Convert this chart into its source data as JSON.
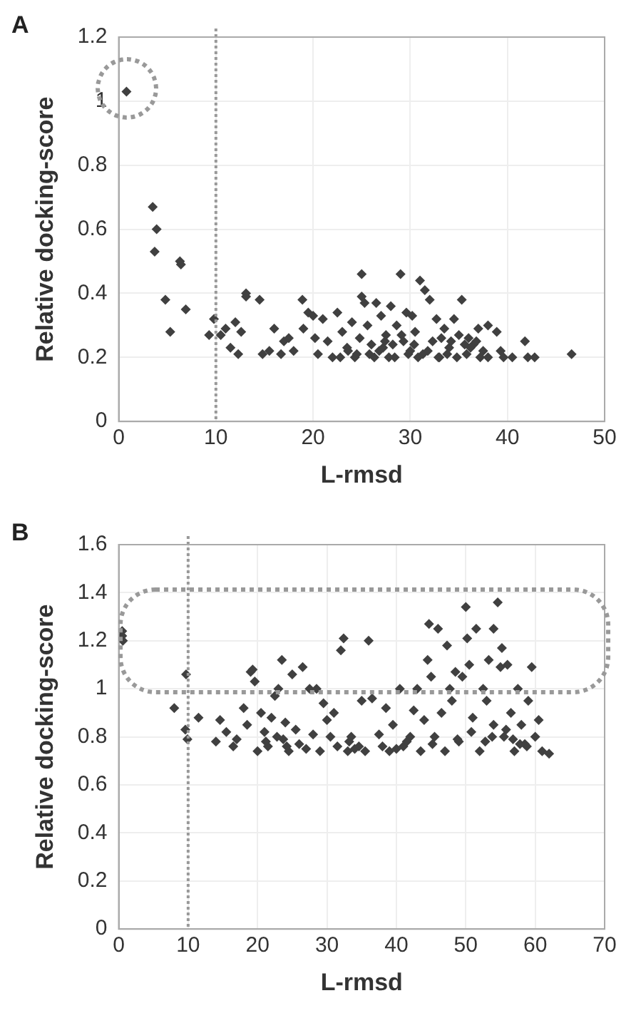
{
  "chart_data": [
    {
      "type": "scatter",
      "annotations": [
        "A"
      ],
      "xlabel": "L-rmsd",
      "ylabel": "Relative docking-score",
      "color": "#404040",
      "marker": "diamond",
      "grid": true,
      "xlim": [
        0,
        50
      ],
      "xticks": [
        0,
        10,
        20,
        30,
        40,
        50
      ],
      "ylim": [
        0,
        1.2
      ],
      "yticks": [
        0,
        0.2,
        0.4,
        0.6,
        0.8,
        1,
        1.2
      ],
      "ref_lines": [
        {
          "axis": "x",
          "value": 10,
          "color": "#999999",
          "line_style": "dotted"
        }
      ],
      "x": [
        0.8,
        3.5,
        3.9,
        3.7,
        6.3,
        6.4,
        4.8,
        5.3,
        6.9,
        9.3,
        9.8,
        10.5,
        11,
        11.5,
        12,
        12.3,
        12.6,
        13.1,
        13.1,
        14.5,
        14.8,
        15.5,
        16,
        16.7,
        17,
        17.5,
        18,
        18.9,
        19,
        19.5,
        20,
        20.2,
        20.5,
        21,
        21.5,
        22,
        22.5,
        23,
        23.5,
        24,
        24.5,
        25,
        25,
        25.3,
        25.6,
        26,
        26.5,
        26.8,
        27,
        27.5,
        28,
        28.4,
        28.6,
        29,
        29.3,
        29.6,
        30,
        30.2,
        30.5,
        31,
        31.3,
        31.5,
        32,
        32.3,
        32.7,
        33,
        33.5,
        34,
        34.5,
        35,
        35.3,
        35.8,
        36,
        36.5,
        37,
        37.5,
        38,
        38,
        38.9,
        39.3,
        39.6,
        40.5,
        41.8,
        42.1,
        42.8,
        46.6,
        22.8,
        23.6,
        24.3,
        25.8,
        26.3,
        27.2,
        27.8,
        28.2,
        29.8,
        30.8,
        31.8,
        32.9,
        33.8,
        34.8,
        36.2,
        37.2,
        24.8,
        27.4,
        29.1,
        30.4,
        33.2,
        34.2,
        35.6,
        36.8
      ],
      "values": [
        1.03,
        0.67,
        0.6,
        0.53,
        0.5,
        0.49,
        0.38,
        0.28,
        0.35,
        0.27,
        0.32,
        0.27,
        0.29,
        0.23,
        0.31,
        0.21,
        0.28,
        0.4,
        0.39,
        0.38,
        0.21,
        0.22,
        0.29,
        0.21,
        0.25,
        0.26,
        0.22,
        0.38,
        0.29,
        0.34,
        0.33,
        0.26,
        0.21,
        0.32,
        0.25,
        0.2,
        0.34,
        0.28,
        0.23,
        0.31,
        0.21,
        0.46,
        0.39,
        0.37,
        0.3,
        0.24,
        0.37,
        0.22,
        0.33,
        0.27,
        0.36,
        0.2,
        0.3,
        0.46,
        0.25,
        0.34,
        0.22,
        0.33,
        0.28,
        0.44,
        0.21,
        0.41,
        0.38,
        0.25,
        0.32,
        0.2,
        0.29,
        0.23,
        0.32,
        0.27,
        0.38,
        0.21,
        0.26,
        0.24,
        0.29,
        0.22,
        0.3,
        0.2,
        0.28,
        0.22,
        0.2,
        0.2,
        0.25,
        0.2,
        0.2,
        0.21,
        0.2,
        0.22,
        0.2,
        0.21,
        0.2,
        0.23,
        0.2,
        0.24,
        0.21,
        0.2,
        0.22,
        0.2,
        0.21,
        0.2,
        0.23,
        0.2,
        0.26,
        0.25,
        0.27,
        0.24,
        0.26,
        0.25,
        0.24,
        0.25
      ]
    },
    {
      "type": "scatter",
      "annotations": [
        "B"
      ],
      "xlabel": "L-rmsd",
      "ylabel": "Relative docking-score",
      "color": "#404040",
      "marker": "diamond",
      "grid": true,
      "xlim": [
        0,
        70
      ],
      "xticks": [
        0,
        10,
        20,
        30,
        40,
        50,
        60,
        70
      ],
      "ylim": [
        0,
        1.6
      ],
      "yticks": [
        0,
        0.2,
        0.4,
        0.6,
        0.8,
        1,
        1.2,
        1.4,
        1.6
      ],
      "ref_lines": [
        {
          "axis": "x",
          "value": 10,
          "color": "#999999",
          "line_style": "dotted"
        }
      ],
      "x": [
        0.5,
        0.5,
        0.6,
        8,
        9.7,
        9.6,
        9.9,
        11.5,
        14,
        14.6,
        15.5,
        16.5,
        17,
        18,
        18.5,
        19,
        19.3,
        19.6,
        20,
        20.5,
        21,
        21.5,
        22,
        22.5,
        23,
        23.5,
        23.7,
        24,
        24.5,
        25,
        25.5,
        26,
        26.5,
        27,
        27.5,
        28,
        28.5,
        29,
        29.5,
        30,
        30.5,
        31,
        31.5,
        32,
        32.4,
        33,
        33.5,
        34,
        35,
        35.5,
        36,
        36.5,
        37.5,
        38,
        38.5,
        39,
        39.5,
        40.5,
        41,
        42,
        42.5,
        43,
        43.5,
        44,
        44.5,
        44.7,
        45,
        45.5,
        46,
        46.5,
        47,
        47.3,
        47.7,
        48,
        48.5,
        49,
        49.5,
        50,
        50.2,
        50.5,
        51,
        51.5,
        52,
        52.5,
        53,
        53.3,
        54,
        54,
        54.6,
        55,
        55.2,
        55.5,
        56,
        56.5,
        57,
        57.5,
        58,
        58.5,
        59,
        59.5,
        60,
        60.5,
        61,
        62,
        21.2,
        22.8,
        24.2,
        33.2,
        34.6,
        40,
        41.5,
        45.2,
        48.8,
        50.8,
        52.8,
        53.8,
        55.8,
        56.8,
        57.8,
        58.8
      ],
      "values": [
        1.24,
        1.22,
        1.2,
        0.92,
        1.06,
        0.83,
        0.79,
        0.88,
        0.78,
        0.87,
        0.82,
        0.76,
        0.79,
        0.92,
        0.85,
        1.07,
        1.08,
        1.03,
        0.74,
        0.9,
        0.82,
        0.76,
        0.88,
        0.97,
        1.0,
        1.12,
        0.79,
        0.86,
        0.74,
        1.06,
        0.83,
        0.77,
        1.09,
        0.75,
        1.0,
        0.81,
        1.0,
        0.74,
        0.94,
        0.87,
        0.8,
        0.9,
        0.76,
        1.16,
        1.21,
        0.74,
        0.8,
        0.75,
        0.95,
        0.74,
        1.2,
        0.96,
        0.81,
        0.76,
        0.92,
        0.74,
        0.85,
        1.0,
        0.76,
        0.8,
        0.91,
        1.0,
        0.74,
        0.87,
        1.12,
        1.27,
        1.05,
        0.8,
        1.25,
        0.9,
        0.74,
        1.18,
        1.0,
        0.95,
        1.07,
        0.78,
        1.05,
        1.34,
        1.21,
        1.1,
        0.88,
        1.25,
        0.74,
        1.0,
        0.95,
        1.12,
        1.25,
        0.85,
        1.36,
        1.09,
        1.17,
        0.8,
        1.1,
        0.9,
        0.74,
        1.0,
        0.85,
        0.77,
        0.95,
        1.09,
        0.8,
        0.87,
        0.74,
        0.73,
        0.78,
        0.8,
        0.76,
        0.78,
        0.76,
        0.75,
        0.78,
        0.77,
        0.79,
        0.82,
        0.78,
        0.8,
        0.83,
        0.79,
        0.77,
        0.76
      ]
    }
  ]
}
